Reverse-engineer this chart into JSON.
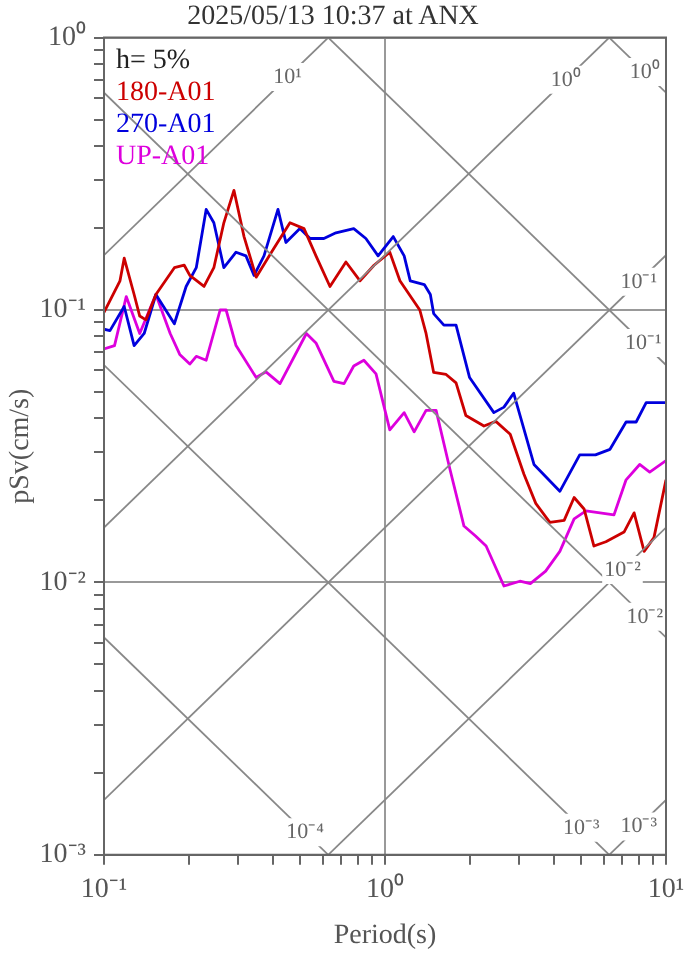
{
  "chart_data": {
    "type": "line",
    "title": "2025/05/13 10:37 at ANX",
    "xlabel": "Period(s)",
    "ylabel": "pSv(cm/s)",
    "log": "xy",
    "grid": true,
    "legend": "top left",
    "xlim": [
      0.1,
      10
    ],
    "ylim": [
      0.001,
      1
    ],
    "xticks": [
      {
        "value": 0.1,
        "label": "10⁻¹"
      },
      {
        "value": 0.2,
        "label": null
      },
      {
        "value": 0.3,
        "label": null
      },
      {
        "value": 0.4,
        "label": null
      },
      {
        "value": 0.5,
        "label": null
      },
      {
        "value": 0.6,
        "label": null
      },
      {
        "value": 0.7,
        "label": null
      },
      {
        "value": 0.8,
        "label": null
      },
      {
        "value": 0.9,
        "label": null
      },
      {
        "value": 1,
        "label": "10⁰"
      },
      {
        "value": 2,
        "label": null
      },
      {
        "value": 3,
        "label": null
      },
      {
        "value": 4,
        "label": null
      },
      {
        "value": 5,
        "label": null
      },
      {
        "value": 6,
        "label": null
      },
      {
        "value": 7,
        "label": null
      },
      {
        "value": 8,
        "label": null
      },
      {
        "value": 9,
        "label": null
      },
      {
        "value": 10,
        "label": "10¹"
      }
    ],
    "yticks": [
      {
        "value": 0.001,
        "label": "10⁻³"
      },
      {
        "value": 0.002,
        "label": null
      },
      {
        "value": 0.003,
        "label": null
      },
      {
        "value": 0.004,
        "label": null
      },
      {
        "value": 0.005,
        "label": null
      },
      {
        "value": 0.006,
        "label": null
      },
      {
        "value": 0.007,
        "label": null
      },
      {
        "value": 0.008,
        "label": null
      },
      {
        "value": 0.009,
        "label": null
      },
      {
        "value": 0.01,
        "label": "10⁻²"
      },
      {
        "value": 0.02,
        "label": null
      },
      {
        "value": 0.03,
        "label": null
      },
      {
        "value": 0.04,
        "label": null
      },
      {
        "value": 0.05,
        "label": null
      },
      {
        "value": 0.06,
        "label": null
      },
      {
        "value": 0.07,
        "label": null
      },
      {
        "value": 0.08,
        "label": null
      },
      {
        "value": 0.09,
        "label": null
      },
      {
        "value": 0.1,
        "label": "10⁻¹"
      },
      {
        "value": 0.2,
        "label": null
      },
      {
        "value": 0.3,
        "label": null
      },
      {
        "value": 0.4,
        "label": null
      },
      {
        "value": 0.5,
        "label": null
      },
      {
        "value": 0.6,
        "label": null
      },
      {
        "value": 0.7,
        "label": null
      },
      {
        "value": 0.8,
        "label": null
      },
      {
        "value": 0.9,
        "label": null
      },
      {
        "value": 1,
        "label": "10⁰"
      }
    ],
    "series": [
      {
        "color": "#888888",
        "x": [
          0.1,
          0.628
        ],
        "values": [
          0.159,
          1
        ]
      },
      {
        "color": "#888888",
        "x": [
          0.1,
          6.28
        ],
        "values": [
          0.0159,
          1
        ]
      },
      {
        "color": "#888888",
        "x": [
          0.1,
          10
        ],
        "values": [
          0.00159,
          0.159
        ]
      },
      {
        "color": "#888888",
        "x": [
          0.628,
          10
        ],
        "values": [
          0.001,
          0.0159
        ]
      },
      {
        "color": "#888888",
        "x": [
          6.28,
          10
        ],
        "values": [
          0.001,
          0.00159
        ]
      },
      {
        "color": "#888888",
        "x": [
          6.28,
          10
        ],
        "values": [
          1,
          0.628
        ]
      },
      {
        "color": "#888888",
        "x": [
          0.628,
          10
        ],
        "values": [
          1,
          0.0628
        ]
      },
      {
        "color": "#888888",
        "x": [
          0.1,
          10
        ],
        "values": [
          0.628,
          0.00628
        ]
      },
      {
        "color": "#888888",
        "x": [
          0.1,
          6.28
        ],
        "values": [
          0.0628,
          0.001
        ]
      },
      {
        "color": "#888888",
        "x": [
          0.1,
          0.628
        ],
        "values": [
          0.00628,
          0.001
        ]
      },
      {
        "name": "180-A01",
        "color": "#cc0000",
        "x": [
          0.1,
          0.114,
          0.118,
          0.128,
          0.134,
          0.141,
          0.153,
          0.178,
          0.193,
          0.202,
          0.227,
          0.246,
          0.267,
          0.29,
          0.315,
          0.348,
          0.403,
          0.459,
          0.515,
          0.568,
          0.637,
          0.726,
          0.815,
          0.914,
          1.04,
          1.13,
          1.33,
          1.4,
          1.49,
          1.65,
          1.79,
          1.94,
          2.25,
          2.48,
          2.79,
          3.12,
          3.44,
          3.86,
          4.34,
          4.71,
          5.11,
          5.54,
          6.11,
          7.09,
          7.7,
          8.36,
          9.06,
          10
        ],
        "values": [
          0.098,
          0.128,
          0.155,
          0.114,
          0.095,
          0.092,
          0.114,
          0.143,
          0.146,
          0.134,
          0.122,
          0.143,
          0.209,
          0.275,
          0.186,
          0.132,
          0.169,
          0.209,
          0.199,
          0.158,
          0.122,
          0.15,
          0.128,
          0.146,
          0.163,
          0.128,
          0.1,
          0.082,
          0.059,
          0.058,
          0.054,
          0.041,
          0.0375,
          0.039,
          0.035,
          0.025,
          0.0195,
          0.0166,
          0.0169,
          0.0205,
          0.0186,
          0.0136,
          0.0141,
          0.0153,
          0.018,
          0.013,
          0.0146,
          0.0238
        ]
      },
      {
        "name": "270-A01",
        "color": "#0000dd",
        "x": [
          0.1,
          0.105,
          0.118,
          0.128,
          0.139,
          0.153,
          0.178,
          0.196,
          0.213,
          0.231,
          0.246,
          0.267,
          0.295,
          0.32,
          0.342,
          0.371,
          0.416,
          0.444,
          0.498,
          0.541,
          0.606,
          0.669,
          0.774,
          0.855,
          0.945,
          1.07,
          1.17,
          1.23,
          1.38,
          1.45,
          1.49,
          1.62,
          1.79,
          2.0,
          2.44,
          2.65,
          2.87,
          3.39,
          4.19,
          4.93,
          5.61,
          6.32,
          7.21,
          7.83,
          8.5,
          10
        ],
        "values": [
          0.085,
          0.084,
          0.103,
          0.074,
          0.082,
          0.114,
          0.089,
          0.122,
          0.143,
          0.234,
          0.209,
          0.143,
          0.163,
          0.158,
          0.134,
          0.158,
          0.234,
          0.177,
          0.199,
          0.183,
          0.183,
          0.192,
          0.199,
          0.183,
          0.158,
          0.186,
          0.158,
          0.128,
          0.124,
          0.114,
          0.097,
          0.088,
          0.088,
          0.0565,
          0.042,
          0.044,
          0.0495,
          0.0271,
          0.0216,
          0.0294,
          0.0294,
          0.0308,
          0.0388,
          0.0388,
          0.0457,
          0.0457
        ]
      },
      {
        "name": "UP-A01",
        "color": "#dd00dd",
        "x": [
          0.1,
          0.109,
          0.12,
          0.134,
          0.153,
          0.172,
          0.186,
          0.202,
          0.213,
          0.231,
          0.259,
          0.272,
          0.295,
          0.348,
          0.377,
          0.423,
          0.525,
          0.568,
          0.658,
          0.715,
          0.774,
          0.841,
          0.929,
          1.04,
          1.17,
          1.27,
          1.4,
          1.52,
          1.7,
          1.91,
          2.1,
          2.29,
          2.65,
          3.02,
          3.29,
          3.73,
          4.19,
          4.71,
          5.19,
          6.53,
          7.21,
          8.06,
          8.75,
          10
        ],
        "values": [
          0.072,
          0.074,
          0.112,
          0.082,
          0.114,
          0.082,
          0.0687,
          0.0633,
          0.0676,
          0.0654,
          0.1,
          0.1,
          0.074,
          0.0565,
          0.0593,
          0.0537,
          0.082,
          0.0757,
          0.0547,
          0.0537,
          0.0623,
          0.0654,
          0.0583,
          0.0363,
          0.042,
          0.0357,
          0.0428,
          0.0428,
          0.0262,
          0.0161,
          0.0148,
          0.0136,
          0.0097,
          0.0101,
          0.0099,
          0.011,
          0.013,
          0.0171,
          0.0183,
          0.0177,
          0.0238,
          0.0271,
          0.0254,
          0.028
        ]
      }
    ],
    "annotations": [
      "h= 5%",
      {
        "text": "10¹",
        "x": 0.45,
        "y": 0.716
      },
      {
        "text": "10⁰",
        "x": 4.4,
        "y": 0.7
      },
      {
        "text": "10⁰",
        "x": 8.4,
        "y": 0.748
      },
      {
        "text": "10⁻¹",
        "x": 8.0,
        "y": 0.127
      },
      {
        "text": "10⁻¹",
        "x": 8.3,
        "y": 0.0757
      },
      {
        "text": "10⁻²",
        "x": 7.0,
        "y": 0.0111
      },
      {
        "text": "10⁻²",
        "x": 8.4,
        "y": 0.00748
      },
      {
        "text": "10⁻⁴",
        "x": 0.52,
        "y": 0.00121
      },
      {
        "text": "10⁻³",
        "x": 5.0,
        "y": 0.001256
      },
      {
        "text": "10⁻³",
        "x": 8.0,
        "y": 0.00127
      }
    ]
  }
}
